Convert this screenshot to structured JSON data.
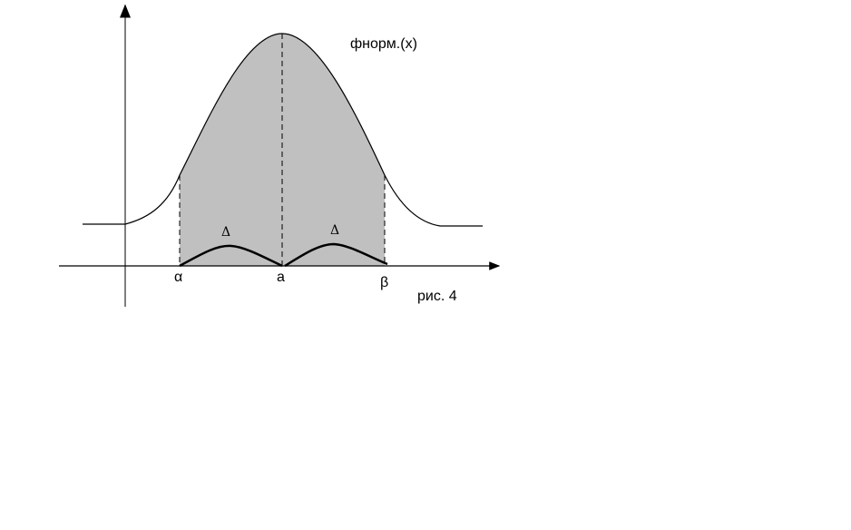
{
  "diagram": {
    "curve_label": "фнорм.(х)",
    "caption": "рис. 4",
    "x_marks": {
      "alpha": "α",
      "a": "a",
      "beta": "β"
    },
    "delta_left": "Δ",
    "delta_right": "Δ",
    "colors": {
      "fill": "#c0c0c0",
      "line": "#000000",
      "background": "#ffffff"
    }
  }
}
